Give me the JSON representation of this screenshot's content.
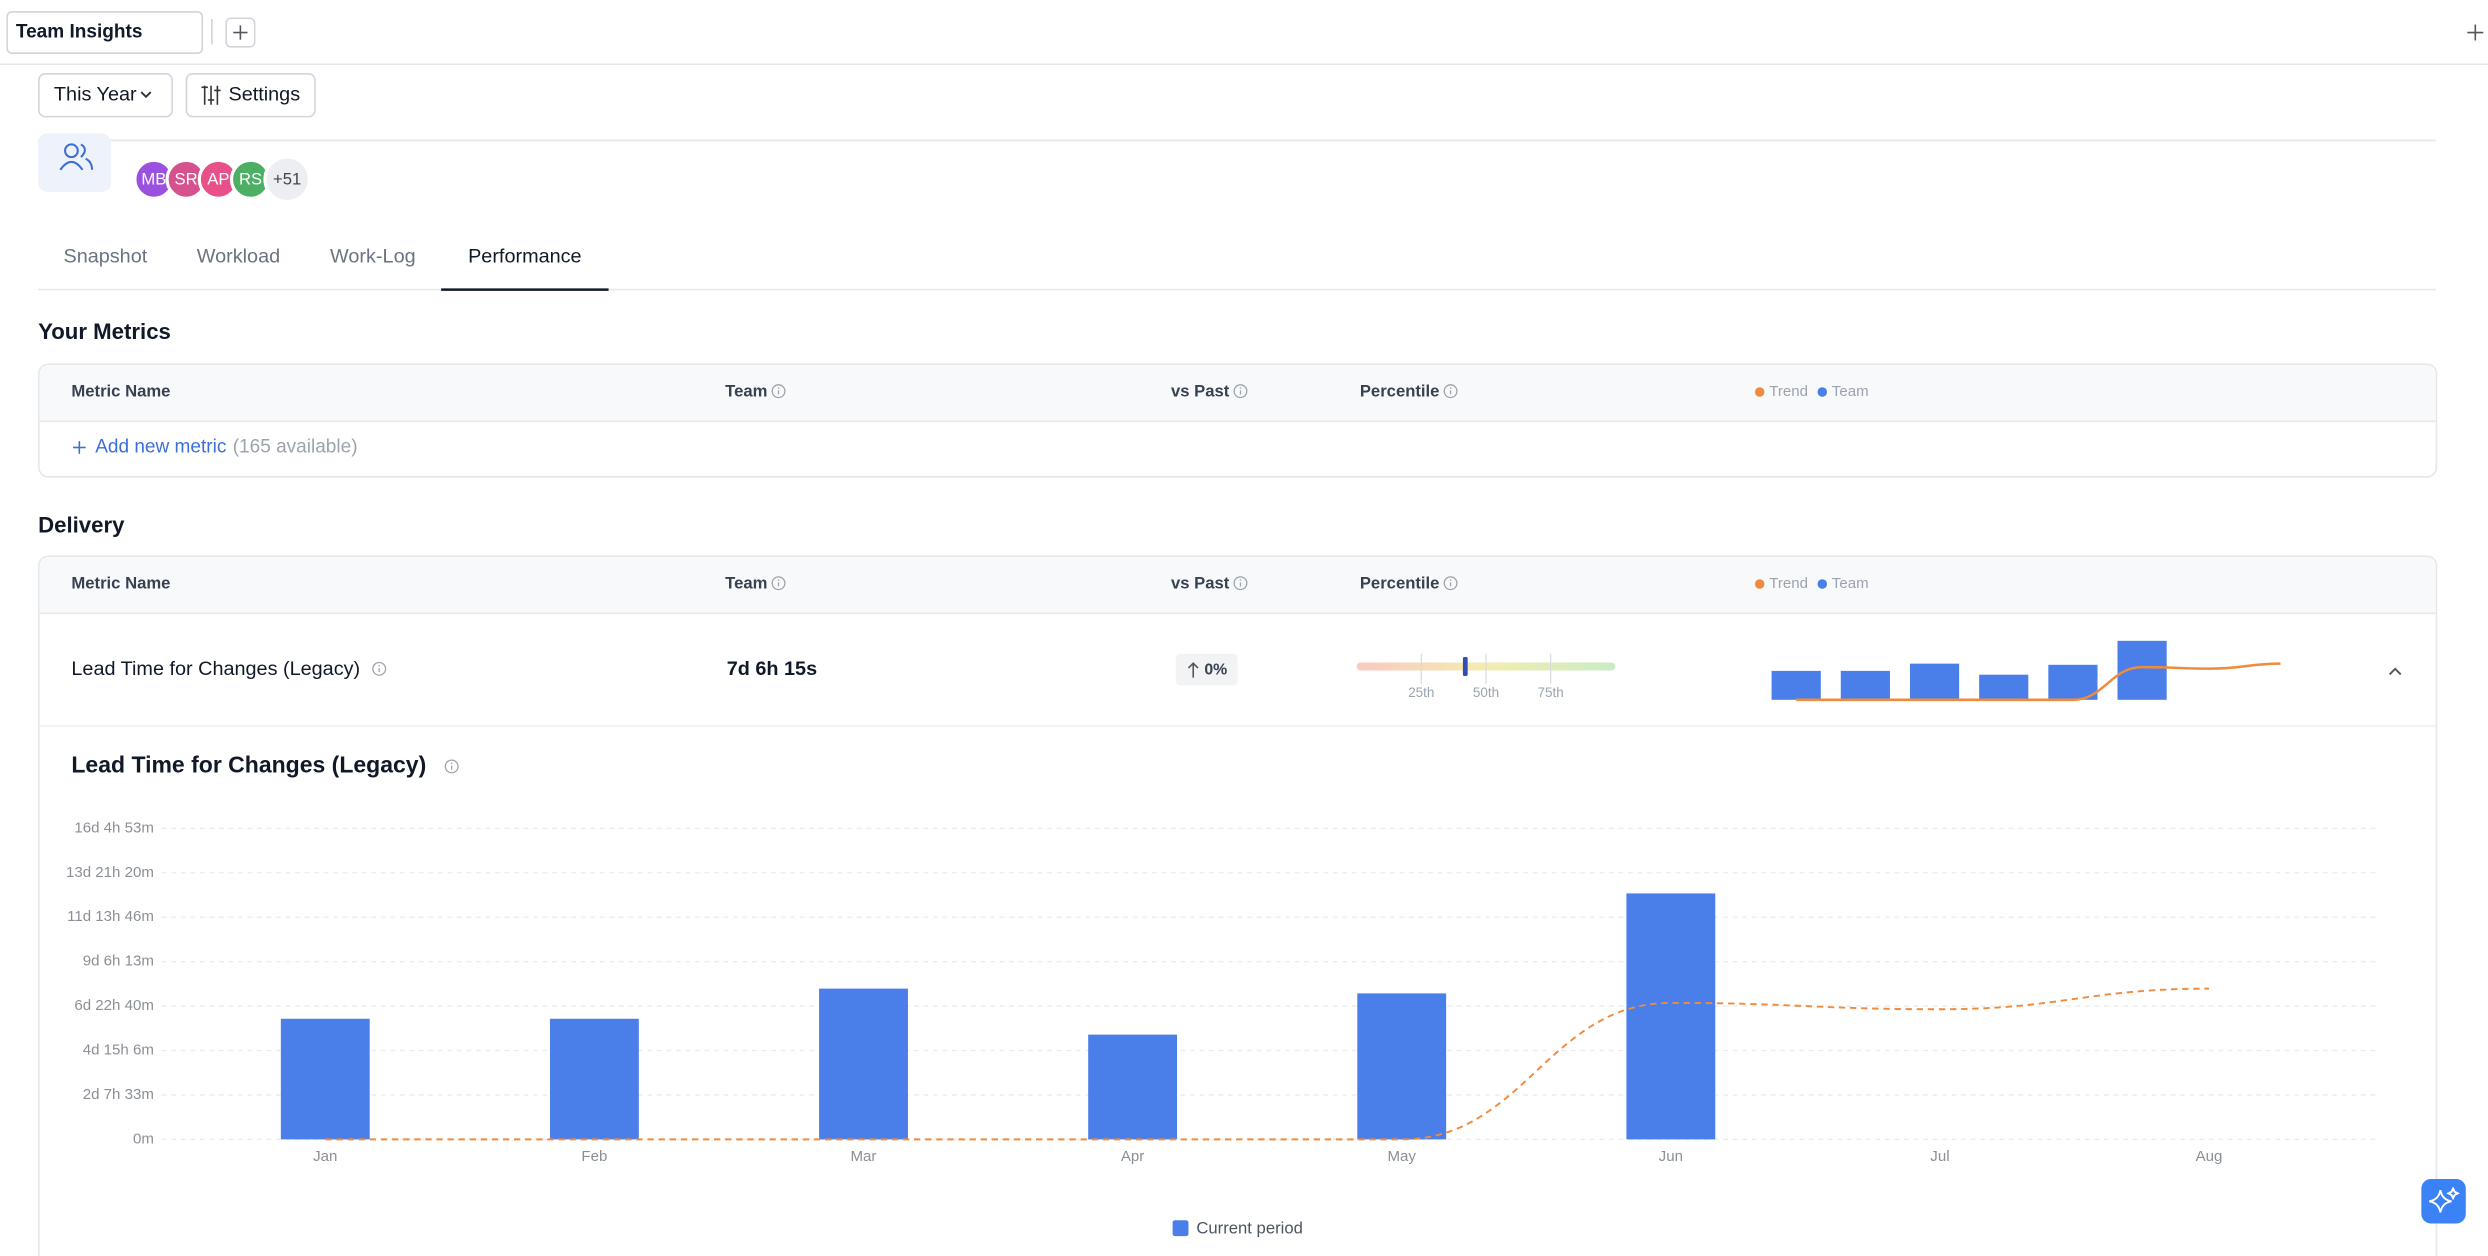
{
  "tab_bar": {
    "tab": "Team Insights"
  },
  "toolbar": {
    "period": "This Year",
    "settings": "Settings"
  },
  "team": {
    "avatars": [
      {
        "initials": "MB",
        "color": "#9b51e0"
      },
      {
        "initials": "SR",
        "color": "#d6528f"
      },
      {
        "initials": "AP",
        "color": "#e8508a"
      },
      {
        "initials": "RS",
        "color": "#4caf63"
      }
    ],
    "more": "+51"
  },
  "nav": {
    "tabs": [
      "Snapshot",
      "Workload",
      "Work-Log",
      "Performance"
    ],
    "active": 3
  },
  "your_metrics": {
    "title": "Your Metrics",
    "columns": [
      "Metric Name",
      "Team",
      "vs Past",
      "Percentile"
    ],
    "legend": [
      "Trend",
      "Team"
    ],
    "add_label": "Add new metric",
    "available": "(165 available)"
  },
  "delivery": {
    "title": "Delivery",
    "columns": [
      "Metric Name",
      "Team",
      "vs Past",
      "Percentile"
    ],
    "legend": [
      "Trend",
      "Team"
    ],
    "row": {
      "name": "Lead Time for Changes (Legacy)",
      "team": "7d 6h 15s",
      "vs_past": "0%",
      "percentile": 42,
      "percentile_lim": [
        0,
        100
      ],
      "percentile_ticks": [
        {
          "value": 25,
          "label": "25th"
        },
        {
          "value": 50,
          "label": "50th"
        },
        {
          "value": 75,
          "label": "75th"
        }
      ]
    }
  },
  "chart_data": {
    "type": "bar",
    "title": "Lead Time for Changes (Legacy)",
    "categories": [
      "Jan",
      "Feb",
      "Mar",
      "Apr",
      "May",
      "Jun",
      "Jul",
      "Aug"
    ],
    "series": [
      {
        "name": "Current period",
        "color": "#4a7fea",
        "values": [
          9047,
          9047,
          11309,
          7857,
          10951,
          18451,
          null,
          null
        ]
      },
      {
        "type": "line",
        "color": "#f08a3c",
        "dashed": true,
        "values": [
          0,
          0,
          0,
          0,
          0,
          10237,
          9761,
          11309
        ]
      }
    ],
    "ylim": [
      0,
      23333
    ],
    "yticks": [
      {
        "value": 0,
        "label": "0m"
      },
      {
        "value": 3333,
        "label": "2d 7h 33m"
      },
      {
        "value": 6667,
        "label": "4d 15h 6m"
      },
      {
        "value": 10000,
        "label": "6d 22h 40m"
      },
      {
        "value": 13333,
        "label": "9d 6h 13m"
      },
      {
        "value": 16667,
        "label": "11d 13h 46m"
      },
      {
        "value": 20000,
        "label": "13d 21h 20m"
      },
      {
        "value": 23333,
        "label": "16d 4h 53m"
      }
    ],
    "grid": true
  }
}
